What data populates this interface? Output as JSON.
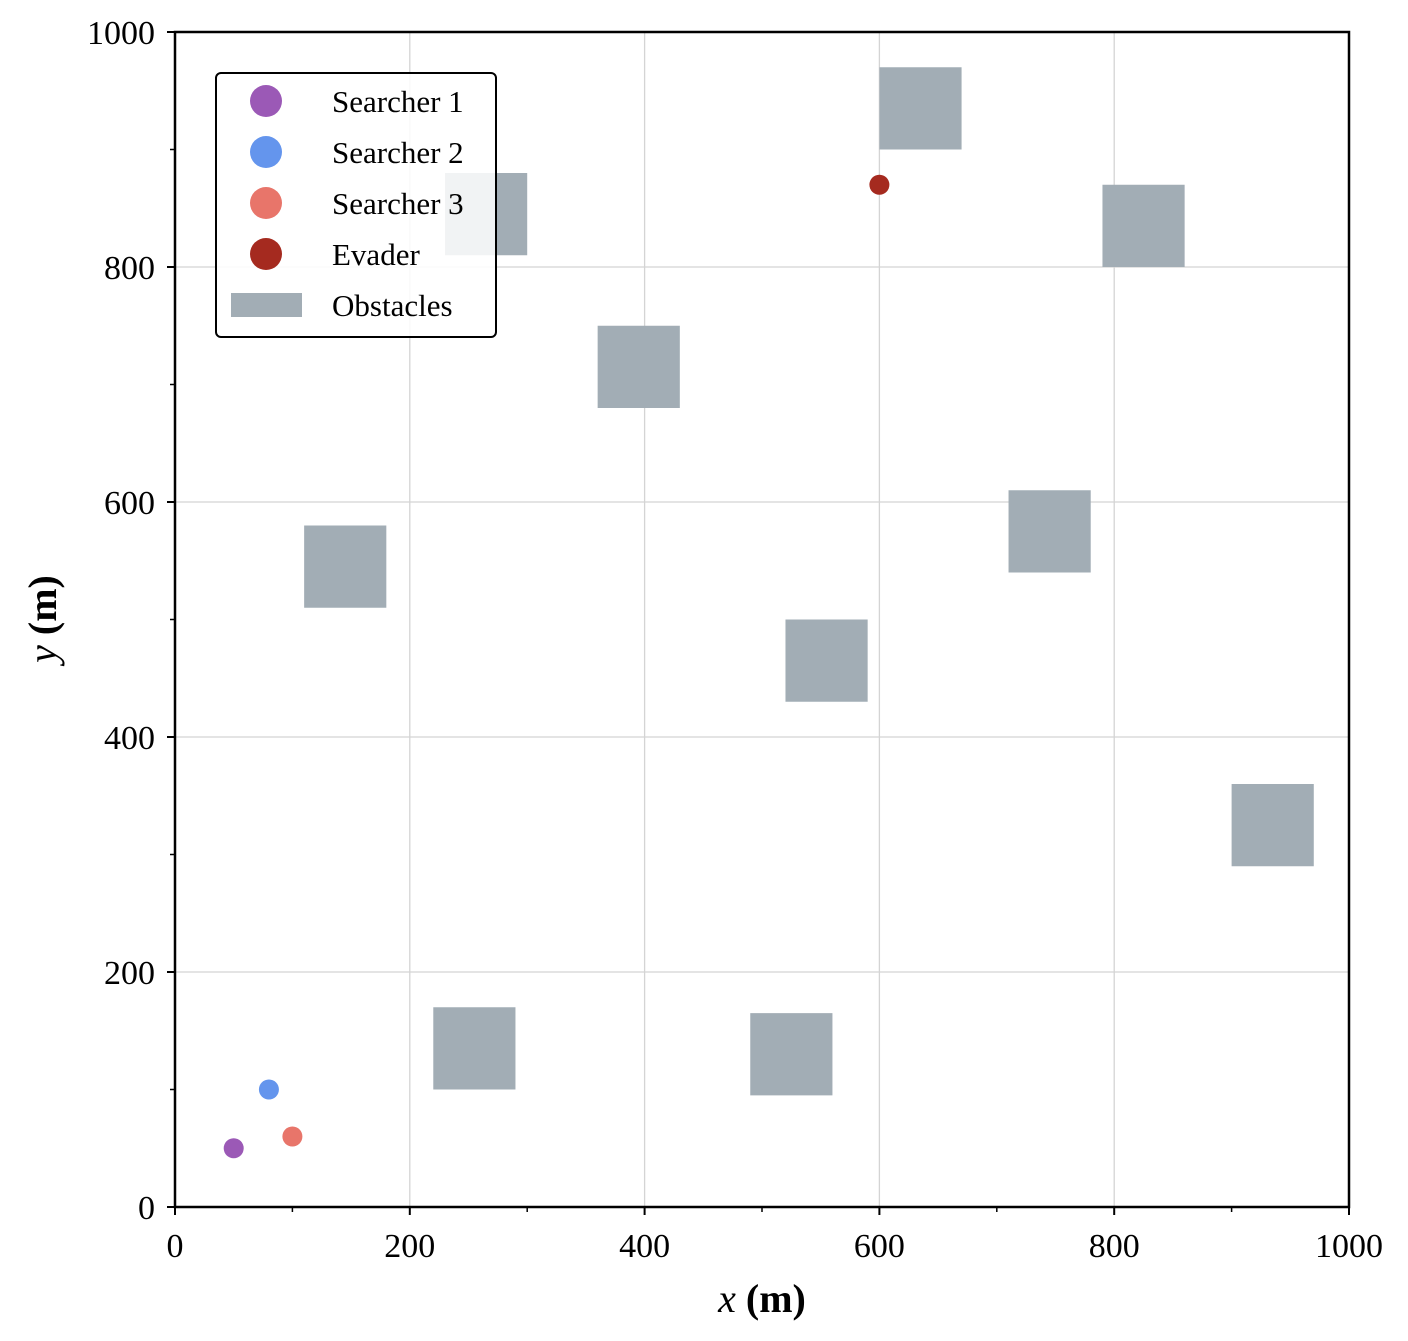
{
  "chart_data": {
    "type": "scatter",
    "title": "",
    "xlabel_var": "x",
    "xlabel_unit": "(m)",
    "ylabel_var": "y",
    "ylabel_unit": "(m)",
    "xlim": [
      0,
      1000
    ],
    "ylim": [
      0,
      1000
    ],
    "xticks": [
      0,
      200,
      400,
      600,
      800,
      1000
    ],
    "yticks": [
      0,
      200,
      400,
      600,
      800,
      1000
    ],
    "xtick_labels": [
      "0",
      "200",
      "400",
      "600",
      "800",
      "1000"
    ],
    "ytick_labels": [
      "0",
      "200",
      "400",
      "600",
      "800",
      "1000"
    ],
    "grid": true,
    "legend_position": "top-left",
    "series": [
      {
        "name": "Searcher 1",
        "color": "#9b59b6",
        "points": [
          {
            "x": 50,
            "y": 50
          }
        ]
      },
      {
        "name": "Searcher 2",
        "color": "#6495ed",
        "points": [
          {
            "x": 80,
            "y": 100
          }
        ]
      },
      {
        "name": "Searcher 3",
        "color": "#e8756a",
        "points": [
          {
            "x": 100,
            "y": 60
          }
        ]
      },
      {
        "name": "Evader",
        "color": "#a52a1f",
        "points": [
          {
            "x": 600,
            "y": 870
          }
        ]
      }
    ],
    "obstacles": {
      "name": "Obstacles",
      "color": "#a2adb5",
      "rects": [
        {
          "x0": 600,
          "y0": 900,
          "x1": 670,
          "y1": 970
        },
        {
          "x0": 230,
          "y0": 810,
          "x1": 300,
          "y1": 880
        },
        {
          "x0": 790,
          "y0": 800,
          "x1": 860,
          "y1": 870
        },
        {
          "x0": 360,
          "y0": 680,
          "x1": 430,
          "y1": 750
        },
        {
          "x0": 110,
          "y0": 510,
          "x1": 180,
          "y1": 580
        },
        {
          "x0": 710,
          "y0": 540,
          "x1": 780,
          "y1": 610
        },
        {
          "x0": 520,
          "y0": 430,
          "x1": 590,
          "y1": 500
        },
        {
          "x0": 900,
          "y0": 290,
          "x1": 970,
          "y1": 360
        },
        {
          "x0": 220,
          "y0": 100,
          "x1": 290,
          "y1": 170
        },
        {
          "x0": 490,
          "y0": 95,
          "x1": 560,
          "y1": 165
        }
      ]
    }
  }
}
